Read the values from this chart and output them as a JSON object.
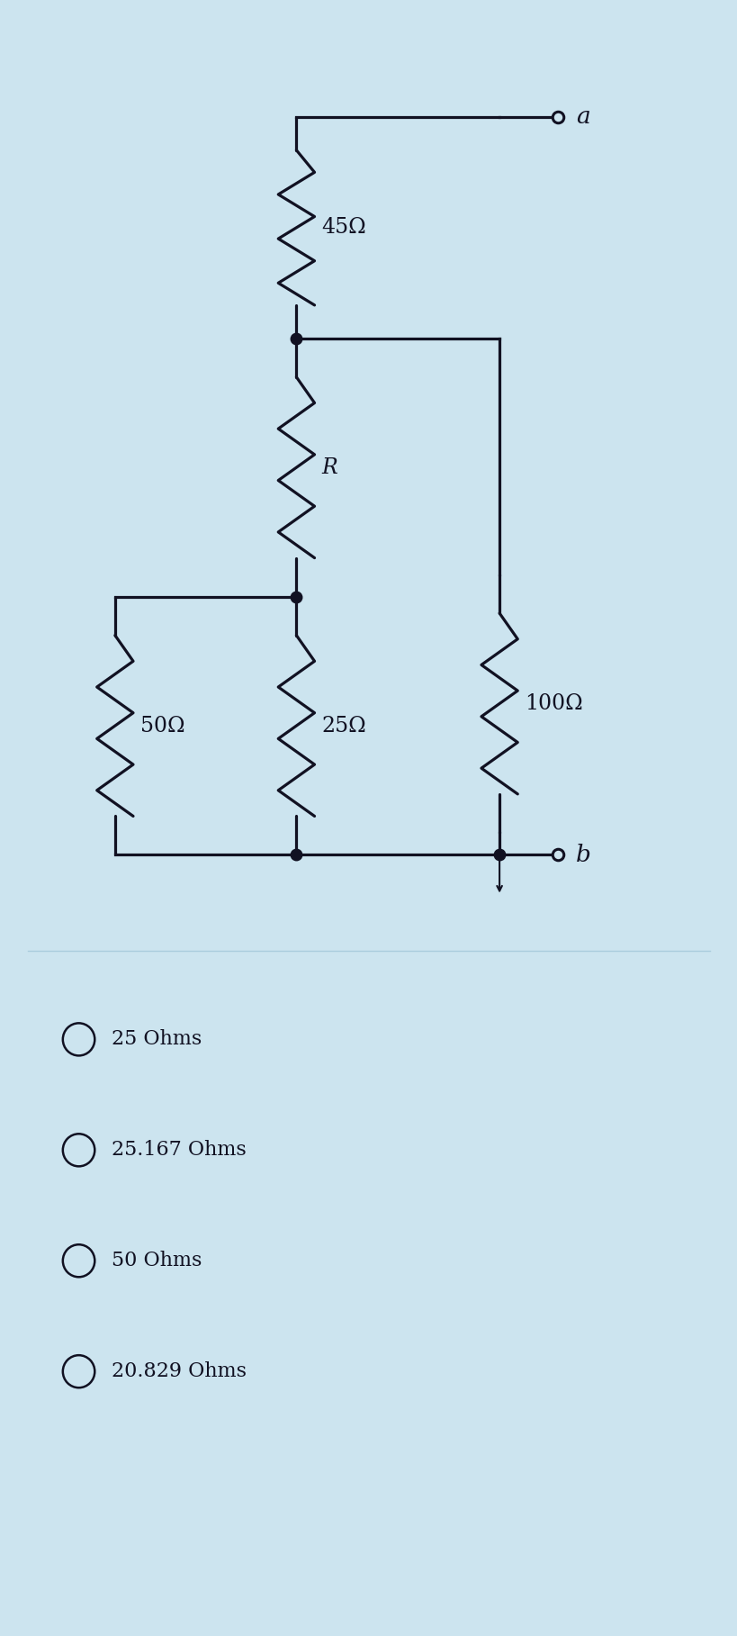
{
  "bg_color": "#cce4ef",
  "line_color": "#111122",
  "text_color": "#111122",
  "labels": {
    "R45": "45Ω",
    "R_R": "R",
    "R50": "50Ω",
    "R25": "25Ω",
    "R100": "100Ω"
  },
  "options": [
    "25 Ohms",
    "25.167 Ohms",
    "50 Ohms",
    "20.829 Ohms"
  ],
  "node_a": "a",
  "node_b": "b"
}
